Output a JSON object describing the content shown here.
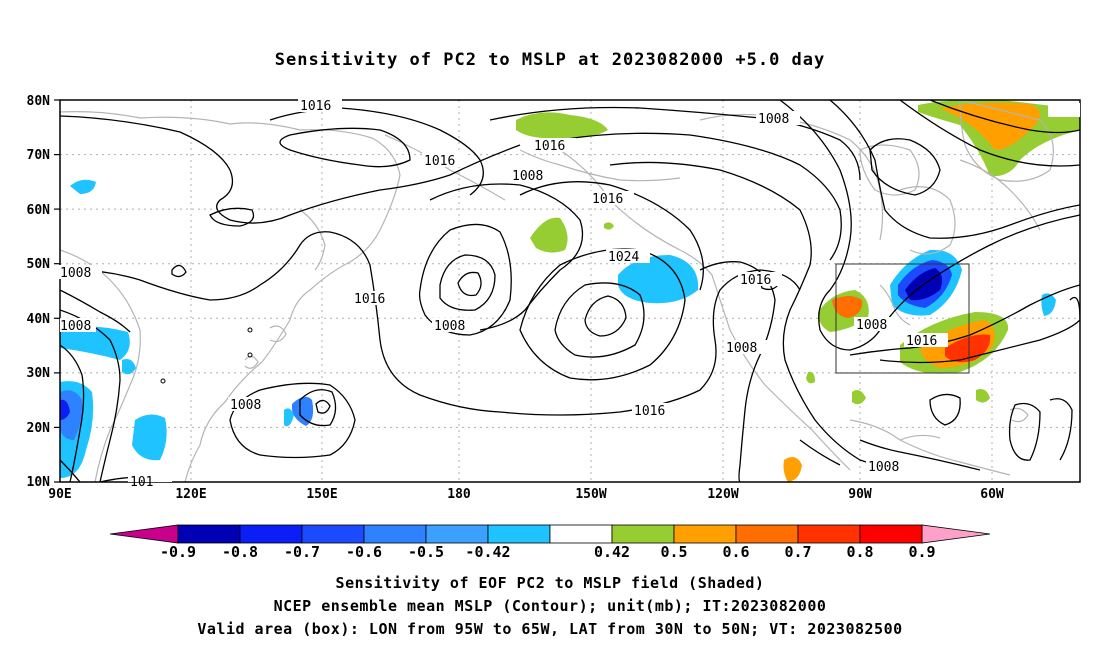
{
  "title": "Sensitivity of PC2 to MSLP at 2023082000 +5.0 day",
  "map": {
    "lat_ticks": [
      "80N",
      "70N",
      "60N",
      "50N",
      "40N",
      "30N",
      "20N",
      "10N"
    ],
    "lon_ticks": [
      "90E",
      "120E",
      "150E",
      "180",
      "150W",
      "120W",
      "90W",
      "60W"
    ],
    "contour_labels": [
      {
        "text": "1016",
        "id": "a"
      },
      {
        "text": "1016",
        "id": "b"
      },
      {
        "text": "1016",
        "id": "c"
      },
      {
        "text": "1008",
        "id": "d"
      },
      {
        "text": "1008",
        "id": "e"
      },
      {
        "text": "1016",
        "id": "f"
      },
      {
        "text": "1024",
        "id": "g"
      },
      {
        "text": "1016",
        "id": "h"
      },
      {
        "text": "1016",
        "id": "i"
      },
      {
        "text": "1008",
        "id": "j"
      },
      {
        "text": "1008",
        "id": "k"
      },
      {
        "text": "1016",
        "id": "l"
      },
      {
        "text": "1008",
        "id": "m"
      },
      {
        "text": "1008",
        "id": "n"
      },
      {
        "text": "1016",
        "id": "o"
      },
      {
        "text": "1008",
        "id": "p"
      },
      {
        "text": "1008",
        "id": "q"
      },
      {
        "text": "1008",
        "id": "r"
      },
      {
        "text": "101",
        "id": "s"
      }
    ],
    "colors": {
      "land": "#b4b4b4",
      "contour": "#000000",
      "grid": "#b0b0b0"
    }
  },
  "colorbar": {
    "labels": [
      "-0.9",
      "-0.8",
      "-0.7",
      "-0.6",
      "-0.5",
      "-0.42",
      "0.42",
      "0.5",
      "0.6",
      "0.7",
      "0.8",
      "0.9"
    ],
    "colors": [
      "#0000b4",
      "#0a1ef5",
      "#1c4bff",
      "#2e82ff",
      "#3ca0ff",
      "#1ec3ff",
      "#ffffff",
      "#96cd32",
      "#ffa000",
      "#ff6e00",
      "#ff3200",
      "#ff0000"
    ],
    "low_end_color": "#c8008c",
    "high_end_color": "#ffa0c8"
  },
  "footer": {
    "line1": "Sensitivity of EOF PC2 to MSLP field (Shaded)",
    "line2": "NCEP ensemble mean MSLP (Contour); unit(mb); IT:2023082000",
    "line3": "Valid area (box): LON from 95W to 65W, LAT from 30N to 50N; VT: 2023082500"
  }
}
